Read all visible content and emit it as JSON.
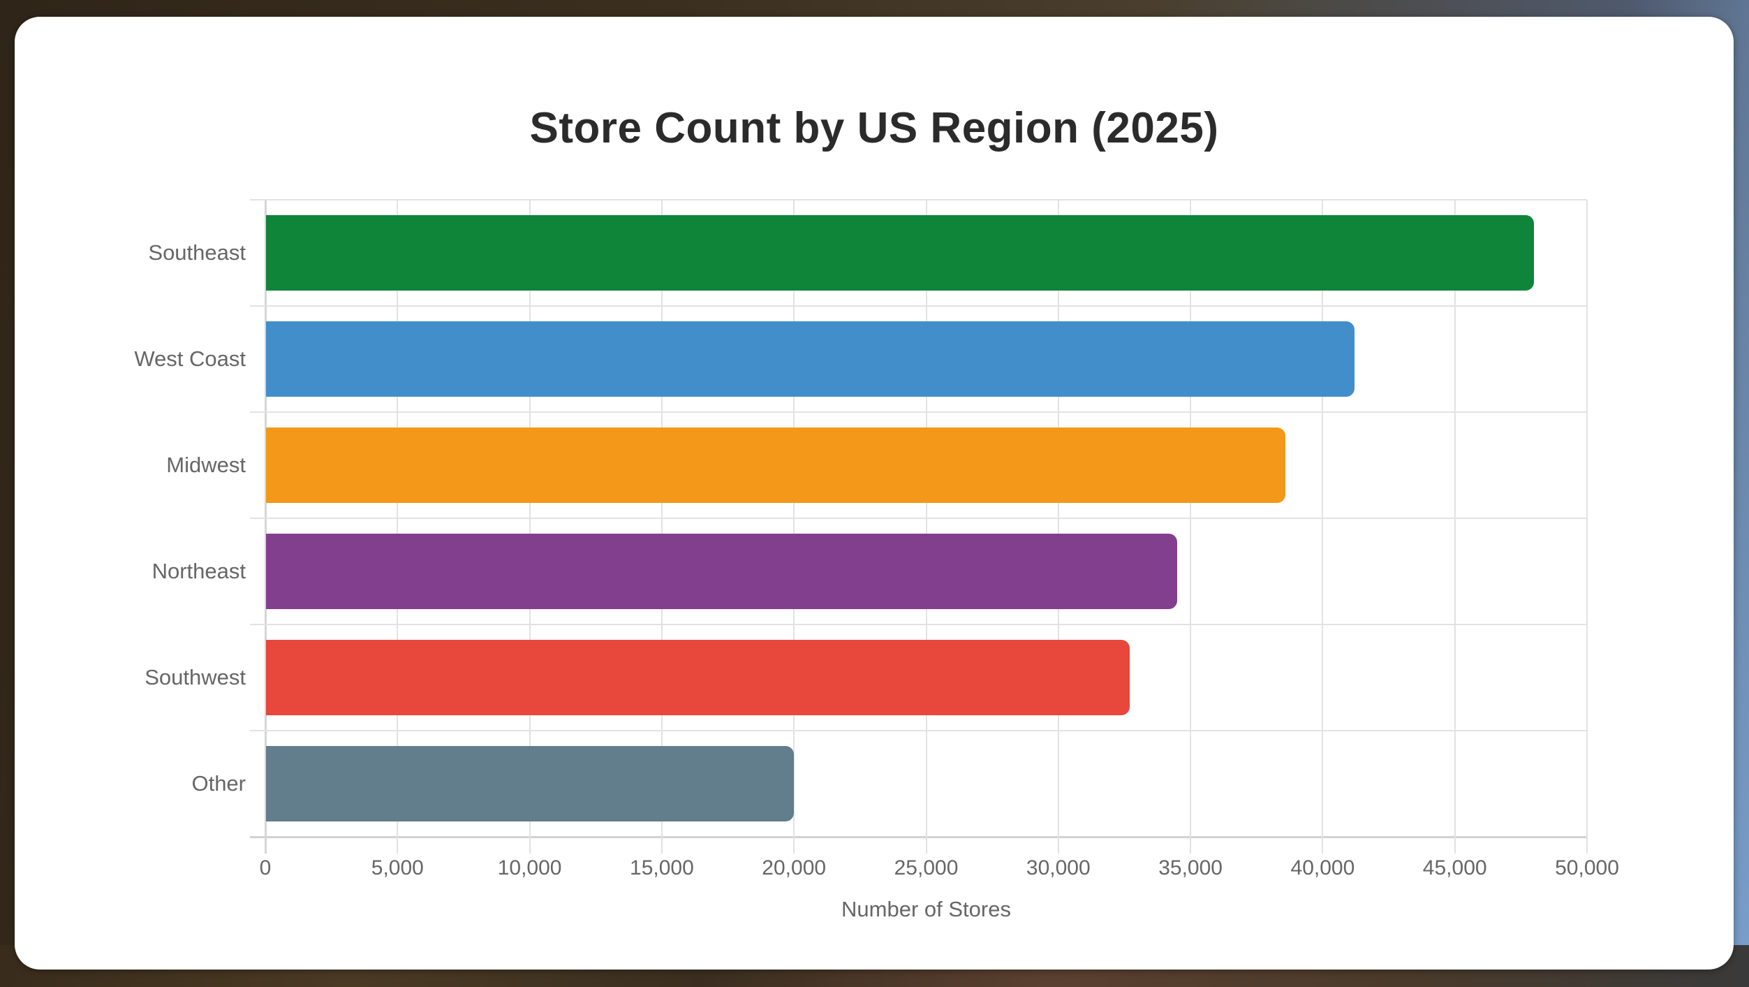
{
  "chart_data": {
    "type": "bar",
    "orientation": "horizontal",
    "title": "Store Count by US Region (2025)",
    "xlabel": "Number of Stores",
    "ylabel": "",
    "categories": [
      "Southeast",
      "West Coast",
      "Midwest",
      "Northeast",
      "Southwest",
      "Other"
    ],
    "values": [
      48000,
      41200,
      38600,
      34500,
      32700,
      20000
    ],
    "colors": [
      "#0e8538",
      "#428ecb",
      "#f39819",
      "#823f8e",
      "#e8473b",
      "#627d8b"
    ],
    "xlim": [
      0,
      50000
    ],
    "x_ticks": [
      "0",
      "5,000",
      "10,000",
      "15,000",
      "20,000",
      "25,000",
      "30,000",
      "35,000",
      "40,000",
      "45,000",
      "50,000"
    ],
    "grid": true,
    "legend": "none"
  }
}
